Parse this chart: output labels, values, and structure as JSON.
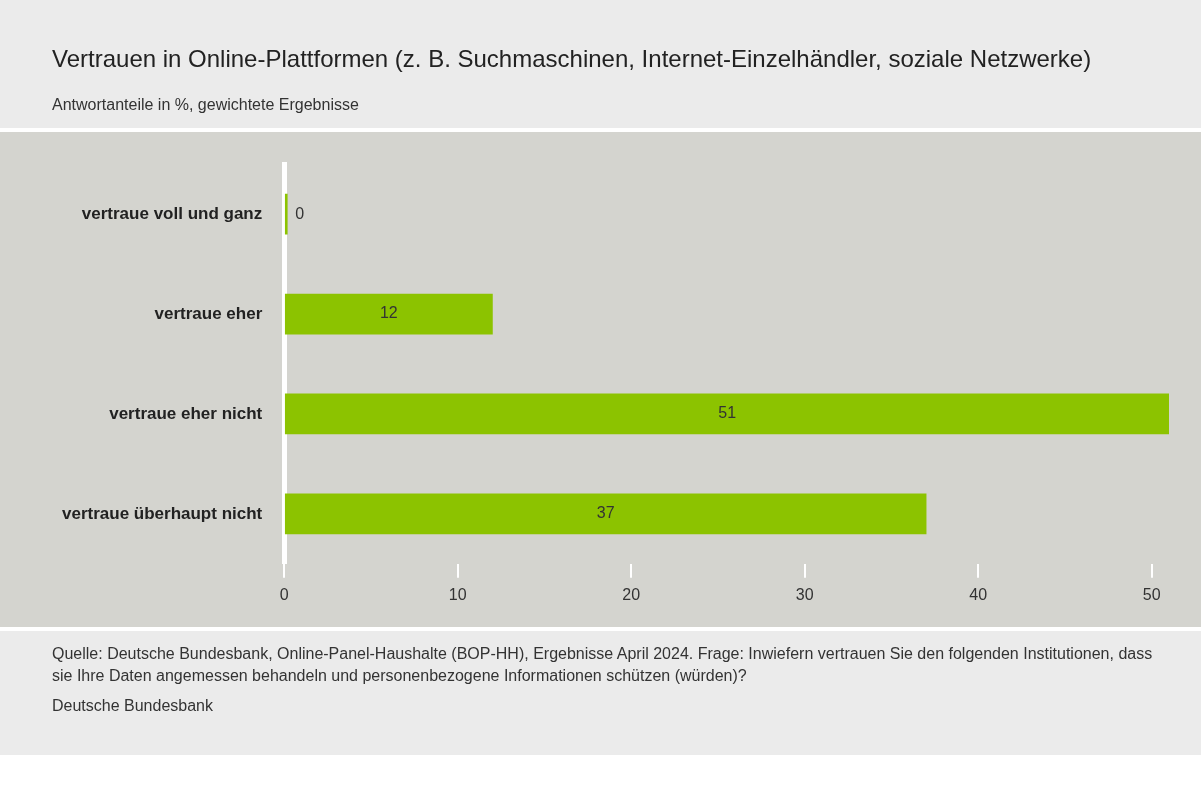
{
  "chart_data": {
    "type": "bar",
    "orientation": "horizontal",
    "title": "Vertrauen in Online-Plattformen (z. B. Suchmaschinen, Internet-Einzelhändler, soziale Netzwerke)",
    "subtitle": "Antwortanteile in %, gewichtete Ergebnisse",
    "categories": [
      "vertraue voll und ganz",
      "vertraue eher",
      "vertraue eher nicht",
      "vertraue überhaupt nicht"
    ],
    "values": [
      0,
      12,
      51,
      37
    ],
    "color": "#8cc300",
    "data_labels": true,
    "grid": false,
    "legend": false,
    "xlim": [
      0,
      51
    ],
    "xticks": [
      0,
      10,
      20,
      30,
      40,
      50
    ],
    "annotations": [
      "Quelle: Deutsche Bundesbank, Online-Panel-Haushalte (BOP-HH), Ergebnisse April 2024. Frage: Inwiefern vertrauen Sie den folgenden Institutionen, dass sie Ihre Daten angemessen behandeln und personenbezogene Informationen schützen (würden)?",
      "Deutsche Bundesbank"
    ]
  }
}
